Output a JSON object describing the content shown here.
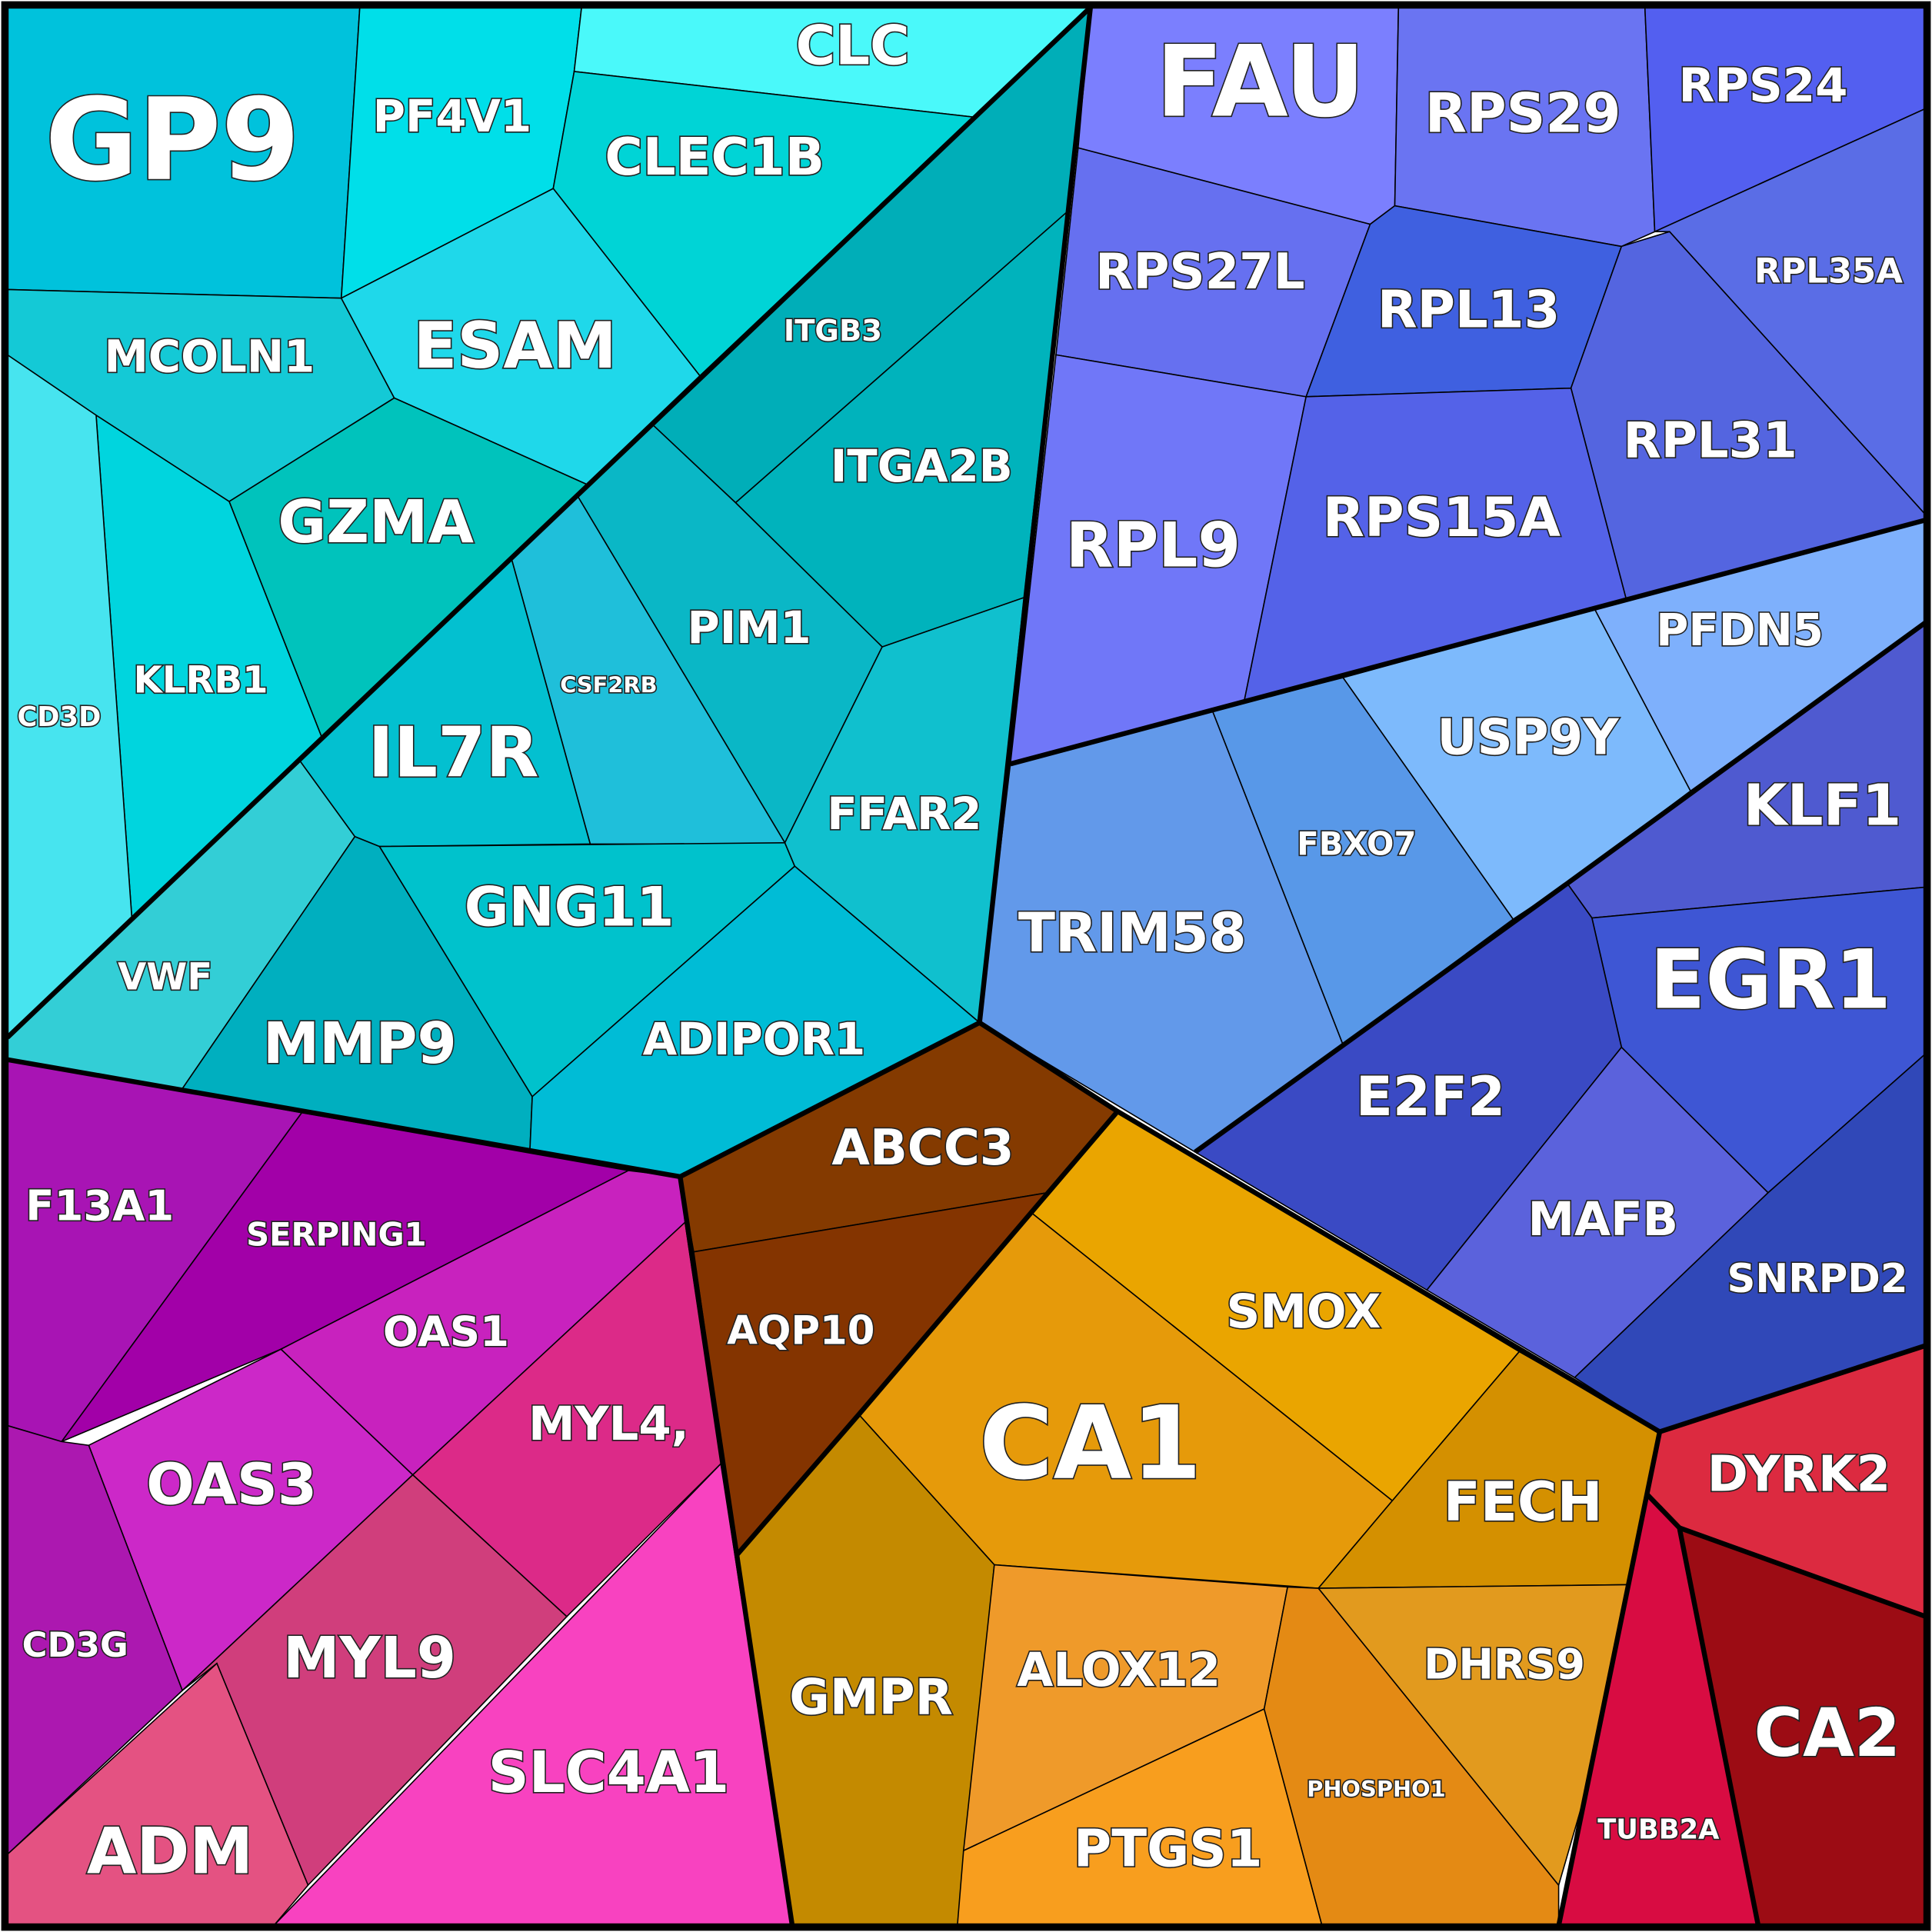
{
  "cells": [
    {
      "label": "GP9"
    },
    {
      "label": "PF4V1"
    },
    {
      "label": "CLC"
    },
    {
      "label": "CLEC1B"
    },
    {
      "label": "MCOLN1"
    },
    {
      "label": "ESAM"
    },
    {
      "label": "ITGB3"
    },
    {
      "label": "ITGA2B"
    },
    {
      "label": "PIM1"
    },
    {
      "label": "CSF2RB"
    },
    {
      "label": "IL7R"
    },
    {
      "label": "GZMA"
    },
    {
      "label": "KLRB1"
    },
    {
      "label": "CD3D"
    },
    {
      "label": "VWF"
    },
    {
      "label": "MMP9"
    },
    {
      "label": "GNG11"
    },
    {
      "label": "FFAR2"
    },
    {
      "label": "ADIPOR1"
    },
    {
      "label": "FAU"
    },
    {
      "label": "RPS29"
    },
    {
      "label": "RPS24"
    },
    {
      "label": "RPL35A"
    },
    {
      "label": "RPS27L"
    },
    {
      "label": "RPL13"
    },
    {
      "label": "RPL31"
    },
    {
      "label": "RPL9"
    },
    {
      "label": "RPS15A"
    },
    {
      "label": "PFDN5"
    },
    {
      "label": "USP9Y"
    },
    {
      "label": "FBXO7"
    },
    {
      "label": "TRIM58"
    },
    {
      "label": "KLF1"
    },
    {
      "label": "EGR1"
    },
    {
      "label": "E2F2"
    },
    {
      "label": "MAFB"
    },
    {
      "label": "SNRPD2"
    },
    {
      "label": "ABCC3"
    },
    {
      "label": "AQP10"
    },
    {
      "label": "SMOX"
    },
    {
      "label": "CA1"
    },
    {
      "label": "FECH"
    },
    {
      "label": "GMPR"
    },
    {
      "label": "ALOX12"
    },
    {
      "label": "PTGS1"
    },
    {
      "label": "PHOSPHO1"
    },
    {
      "label": "DHRS9"
    },
    {
      "label": "DYRK2"
    },
    {
      "label": "TUBB2A"
    },
    {
      "label": "CA2"
    },
    {
      "label": "F13A1"
    },
    {
      "label": "SERPING1"
    },
    {
      "label": "OAS1"
    },
    {
      "label": "OAS3"
    },
    {
      "label": "CD3G"
    },
    {
      "label": "MYL4,"
    },
    {
      "label": "MYL9"
    },
    {
      "label": "ADM"
    },
    {
      "label": "SLC4A1"
    }
  ]
}
